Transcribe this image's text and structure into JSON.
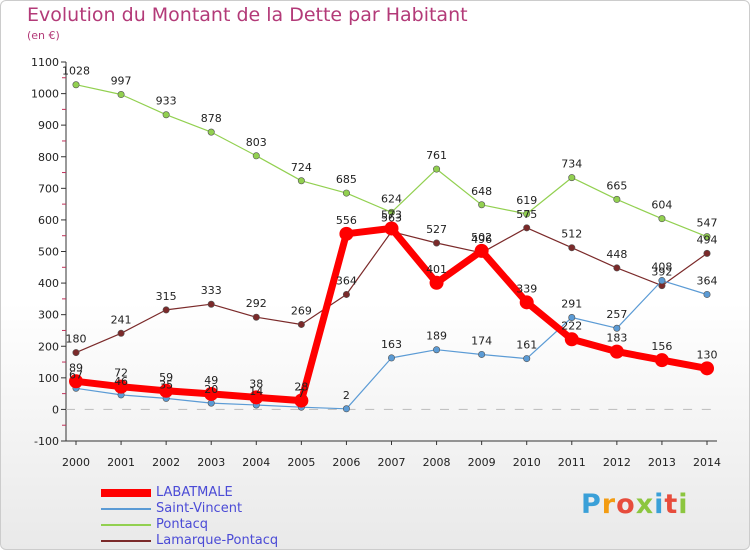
{
  "title": "Evolution du Montant de la Dette par Habitant",
  "subtitle": "(en €)",
  "logo_text": "Proxiti",
  "chart_data": {
    "type": "line",
    "title": "Evolution du Montant de la Dette par Habitant",
    "subtitle": "(en €)",
    "x": [
      "2000",
      "2001",
      "2002",
      "2003",
      "2004",
      "2005",
      "2006",
      "2007",
      "2008",
      "2009",
      "2010",
      "2011",
      "2012",
      "2013",
      "2014"
    ],
    "ylim": [
      -100,
      1100
    ],
    "yticks": [
      -100,
      0,
      100,
      200,
      300,
      400,
      500,
      600,
      700,
      800,
      900,
      1000,
      1100
    ],
    "grid": false,
    "legend_position": "bottom-left",
    "series": [
      {
        "name": "LABATMALE",
        "color": "#ff0000",
        "values": [
          89,
          72,
          59,
          49,
          38,
          28,
          556,
          573,
          401,
          502,
          339,
          222,
          183,
          156,
          130
        ]
      },
      {
        "name": "Saint-Vincent",
        "color": "#5b9bd5",
        "values": [
          67,
          46,
          35,
          20,
          14,
          7,
          2,
          163,
          189,
          174,
          161,
          291,
          257,
          408,
          364
        ]
      },
      {
        "name": "Pontacq",
        "color": "#92d050",
        "values": [
          1028,
          997,
          933,
          878,
          803,
          724,
          685,
          624,
          761,
          648,
          619,
          734,
          665,
          604,
          547
        ]
      },
      {
        "name": "Lamarque-Pontacq",
        "color": "#7b2a2a",
        "values": [
          180,
          241,
          315,
          333,
          292,
          269,
          364,
          563,
          527,
          496,
          575,
          512,
          448,
          392,
          494
        ]
      }
    ]
  }
}
